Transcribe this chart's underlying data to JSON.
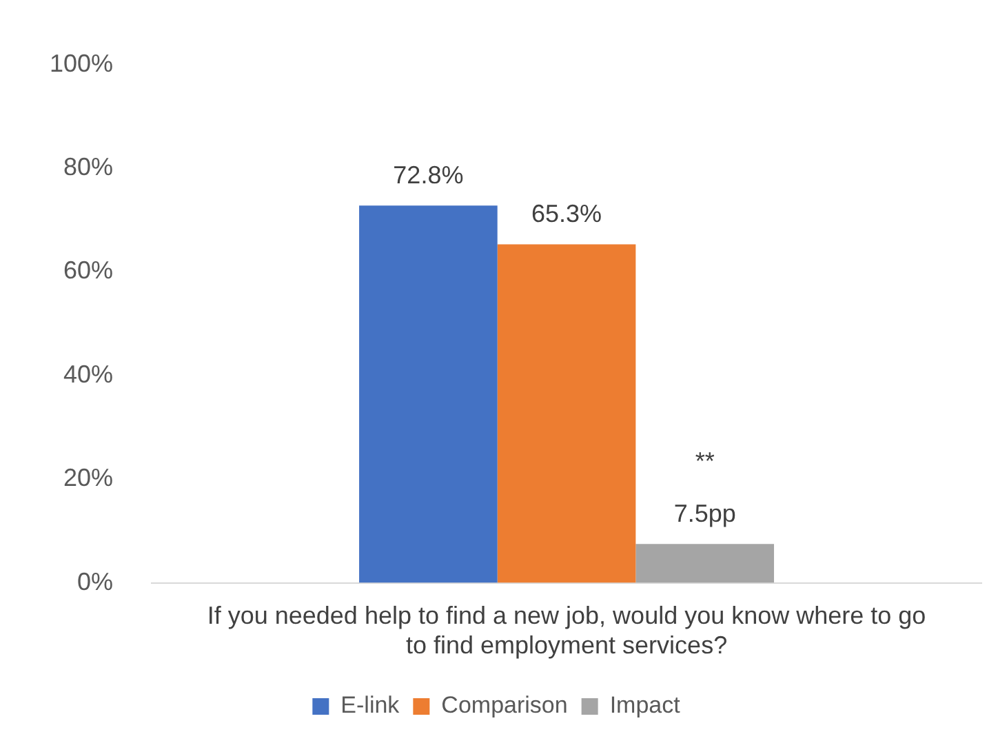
{
  "chart_data": {
    "type": "bar",
    "categories": [
      "If you needed help to find a new job, would you know where to go to find employment services?"
    ],
    "series": [
      {
        "name": "E-link",
        "color": "#4472c4",
        "values": [
          72.8
        ],
        "value_labels": [
          "72.8%"
        ]
      },
      {
        "name": "Comparison",
        "color": "#ed7d31",
        "values": [
          65.3
        ],
        "value_labels": [
          "65.3%"
        ]
      },
      {
        "name": "Impact",
        "color": "#a5a5a5",
        "values": [
          7.5
        ],
        "value_labels": [
          "**\n7.5pp"
        ]
      }
    ],
    "ylim": [
      0,
      100
    ],
    "yticks": [
      {
        "value": 0,
        "label": "0%"
      },
      {
        "value": 20,
        "label": "20%"
      },
      {
        "value": 40,
        "label": "40%"
      },
      {
        "value": 60,
        "label": "60%"
      },
      {
        "value": 80,
        "label": "80%"
      },
      {
        "value": 100,
        "label": "100%"
      }
    ],
    "grid": false,
    "legend": "bottom"
  }
}
